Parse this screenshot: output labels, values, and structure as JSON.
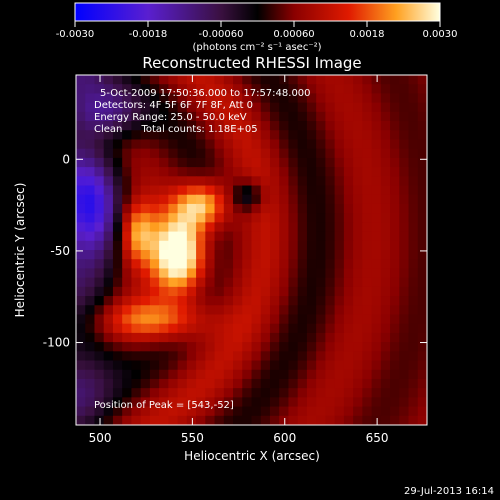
{
  "chart_data": {
    "type": "heatmap",
    "title": "Reconstructed RHESSI Image",
    "xlabel": "Heliocentric X (arcsec)",
    "ylabel": "Heliocentric Y (arcsec)",
    "xlim": [
      487,
      677
    ],
    "ylim": [
      -145,
      46
    ],
    "x_ticks": [
      500,
      550,
      600,
      650
    ],
    "y_ticks": [
      0,
      -50,
      -100
    ],
    "colorbar": {
      "range": [
        -0.003,
        0.003
      ],
      "ticks": [
        "-0.0030",
        "-0.0018",
        "-0.00060",
        "0.00060",
        "0.0018",
        "0.0030"
      ],
      "tick_values": [
        -0.003,
        -0.0018,
        -0.0006,
        0.0006,
        0.0018,
        0.003
      ],
      "units": "(photons cm⁻² s⁻¹ asec⁻²)"
    },
    "annotations": [
      "5-Oct-2009 17:50:36.000 to 17:57:48.000",
      "Detectors: 4F 5F 6F 7F 8F, Att 0",
      "Energy Range: 25.0 - 50.0 keV",
      "Clean      Total counts: 1.18E+05"
    ],
    "peak_label": "Position of Peak = [543,-52]",
    "peak": [
      543,
      -52
    ],
    "sources": [
      {
        "x": 543,
        "y": -52,
        "amp": 0.003,
        "sx": 10,
        "sy": 15
      },
      {
        "x": 555,
        "y": -25,
        "amp": 0.0022,
        "sx": 10,
        "sy": 9
      },
      {
        "x": 530,
        "y": -88,
        "amp": 0.0016,
        "sx": 20,
        "sy": 8
      },
      {
        "x": 520,
        "y": -40,
        "amp": 0.0018,
        "sx": 7,
        "sy": 12
      }
    ],
    "negative_regions": [
      {
        "x": 495,
        "y": -25,
        "amp": -0.0018,
        "sx": 12,
        "sy": 18
      },
      {
        "x": 505,
        "y": 25,
        "amp": -0.0012,
        "sx": 14,
        "sy": 10
      },
      {
        "x": 580,
        "y": -20,
        "amp": -0.0012,
        "sx": 6,
        "sy": 6
      }
    ],
    "timestamp": "29-Jul-2013 16:14"
  }
}
